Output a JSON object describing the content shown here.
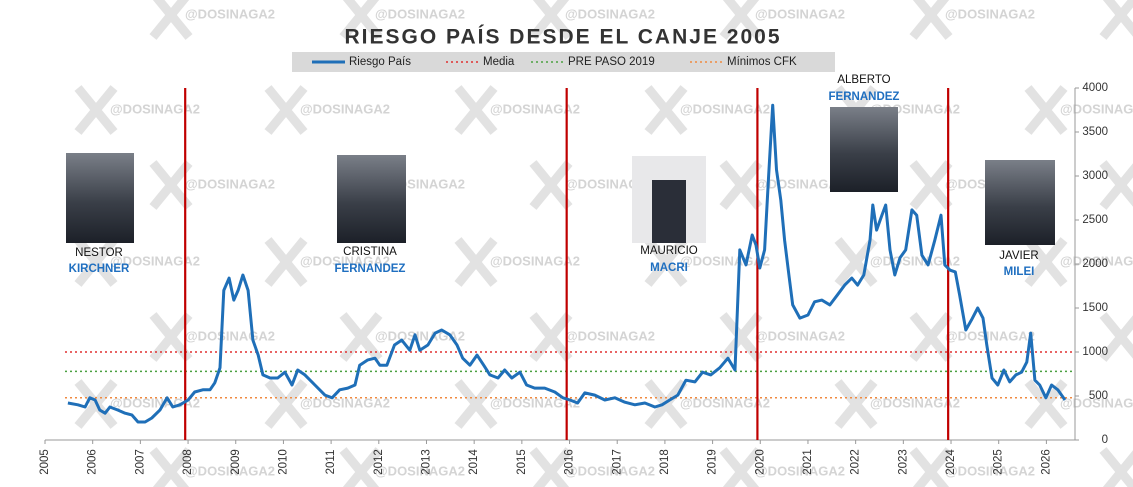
{
  "chart_data": {
    "type": "line",
    "title": "RIESGO PAÍS DESDE EL CANJE 2005",
    "watermark": "@DOSINAGA2",
    "xlim": [
      2005,
      2026.6
    ],
    "xticks": [
      2005,
      2006,
      2007,
      2008,
      2009,
      2010,
      2011,
      2012,
      2013,
      2014,
      2015,
      2016,
      2017,
      2018,
      2019,
      2020,
      2021,
      2022,
      2023,
      2024,
      2025,
      2026
    ],
    "ylim": [
      0,
      4000
    ],
    "yticks": [
      0,
      500,
      1000,
      1500,
      2000,
      2500,
      3000,
      3500,
      4000
    ],
    "x": [
      2005.48,
      2005.69,
      2005.84,
      2005.94,
      2006.05,
      2006.15,
      2006.26,
      2006.36,
      2006.53,
      2006.68,
      2006.82,
      2006.95,
      2007.1,
      2007.24,
      2007.41,
      2007.56,
      2007.68,
      2007.83,
      2008.0,
      2008.14,
      2008.31,
      2008.46,
      2008.56,
      2008.67,
      2008.75,
      2008.86,
      2008.96,
      2009.05,
      2009.15,
      2009.26,
      2009.36,
      2009.47,
      2009.57,
      2009.72,
      2009.88,
      2010.03,
      2010.18,
      2010.3,
      2010.45,
      2010.66,
      2010.87,
      2011.02,
      2011.18,
      2011.35,
      2011.5,
      2011.6,
      2011.77,
      2011.92,
      2012.02,
      2012.17,
      2012.33,
      2012.48,
      2012.65,
      2012.76,
      2012.86,
      2013.03,
      2013.18,
      2013.32,
      2013.49,
      2013.64,
      2013.76,
      2013.91,
      2014.06,
      2014.2,
      2014.33,
      2014.5,
      2014.64,
      2014.79,
      2014.96,
      2015.1,
      2015.27,
      2015.48,
      2015.69,
      2015.86,
      2016.01,
      2016.17,
      2016.32,
      2016.53,
      2016.74,
      2016.95,
      2017.16,
      2017.37,
      2017.58,
      2017.79,
      2017.94,
      2018.1,
      2018.27,
      2018.44,
      2018.63,
      2018.79,
      2018.96,
      2019.15,
      2019.32,
      2019.47,
      2019.57,
      2019.7,
      2019.83,
      2019.91,
      2019.99,
      2020.09,
      2020.17,
      2020.26,
      2020.34,
      2020.43,
      2020.51,
      2020.6,
      2020.68,
      2020.83,
      2021.0,
      2021.14,
      2021.29,
      2021.46,
      2021.62,
      2021.77,
      2021.92,
      2022.04,
      2022.17,
      2022.3,
      2022.36,
      2022.44,
      2022.55,
      2022.63,
      2022.72,
      2022.82,
      2022.93,
      2023.05,
      2023.18,
      2023.28,
      2023.39,
      2023.52,
      2023.66,
      2023.79,
      2023.87,
      2023.98,
      2024.09,
      2024.18,
      2024.31,
      2024.43,
      2024.56,
      2024.67,
      2024.75,
      2024.86,
      2024.98,
      2025.11,
      2025.23,
      2025.36,
      2025.48,
      2025.59,
      2025.67,
      2025.76,
      2025.86,
      2025.99,
      2026.11,
      2026.24,
      2026.39
    ],
    "series": [
      {
        "name": "Riesgo País",
        "color": "#1f6fb8",
        "values": [
          420,
          400,
          375,
          480,
          455,
          340,
          305,
          375,
          340,
          305,
          285,
          205,
          205,
          250,
          340,
          480,
          375,
          400,
          455,
          545,
          570,
          570,
          650,
          820,
          1700,
          1840,
          1590,
          1700,
          1875,
          1700,
          1135,
          965,
          740,
          705,
          705,
          770,
          625,
          795,
          740,
          625,
          510,
          480,
          570,
          590,
          625,
          850,
          910,
          930,
          850,
          850,
          1080,
          1135,
          1020,
          1195,
          1020,
          1080,
          1215,
          1250,
          1195,
          1080,
          930,
          850,
          965,
          850,
          740,
          705,
          795,
          705,
          770,
          625,
          590,
          590,
          545,
          480,
          455,
          420,
          535,
          510,
          455,
          480,
          430,
          400,
          420,
          375,
          400,
          455,
          510,
          680,
          660,
          770,
          740,
          820,
          930,
          795,
          2160,
          1990,
          2330,
          2215,
          1955,
          2160,
          2955,
          3805,
          3070,
          2725,
          2270,
          1875,
          1535,
          1385,
          1420,
          1570,
          1590,
          1535,
          1650,
          1760,
          1840,
          1760,
          1875,
          2270,
          2670,
          2385,
          2555,
          2670,
          2160,
          1875,
          2070,
          2160,
          2615,
          2555,
          2100,
          1990,
          2270,
          2555,
          1990,
          1930,
          1910,
          1650,
          1250,
          1365,
          1500,
          1385,
          1080,
          705,
          625,
          795,
          660,
          740,
          770,
          885,
          1215,
          680,
          625,
          480,
          625,
          570,
          455
        ]
      }
    ],
    "reference_lines": [
      {
        "name": "Media",
        "value": 1000,
        "color": "#e03030"
      },
      {
        "name": "PRE PASO 2019",
        "value": 780,
        "color": "#4aa040"
      },
      {
        "name": "Mínimos CFK",
        "value": 480,
        "color": "#f08a40"
      }
    ],
    "vertical_lines": {
      "color": "#c00000",
      "x": [
        2007.94,
        2015.94,
        2019.94,
        2023.94
      ]
    },
    "annotations": [
      {
        "first": "NESTOR",
        "last": "KIRCHNER"
      },
      {
        "first": "CRISTINA",
        "last": "FERNANDEZ"
      },
      {
        "first": "MAURICIO",
        "last": "MACRI"
      },
      {
        "first": "ALBERTO",
        "last": "FERNANDEZ"
      },
      {
        "first": "JAVIER",
        "last": "MILEI"
      }
    ]
  }
}
